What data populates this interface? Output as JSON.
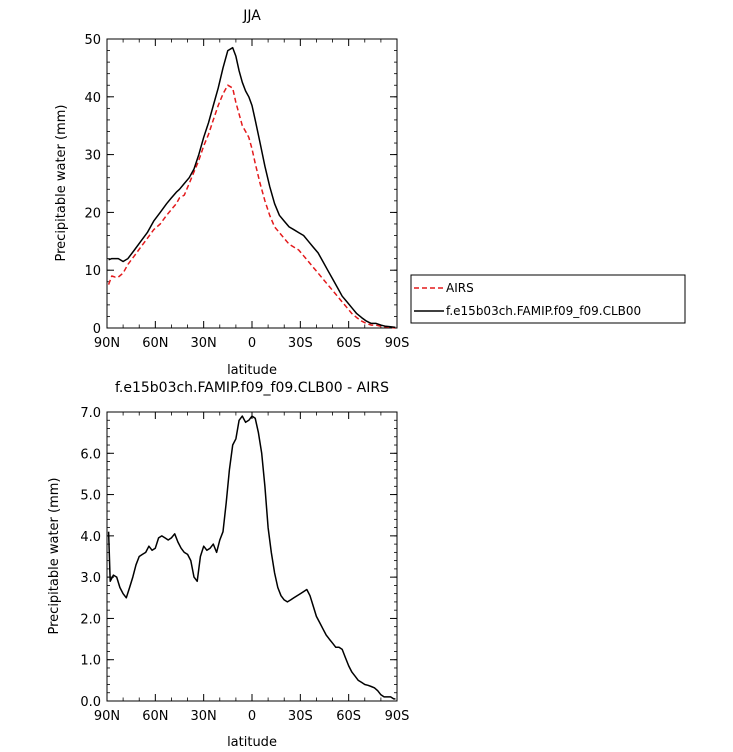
{
  "chart_data": [
    {
      "type": "line",
      "title": "JJA",
      "xlabel": "latitude",
      "ylabel": "Precipitable water (mm)",
      "xlim": [
        90,
        -90
      ],
      "ylim": [
        0,
        50
      ],
      "xticks": [
        90,
        60,
        30,
        0,
        -30,
        -60,
        -90
      ],
      "xtick_labels": [
        "90N",
        "60N",
        "30N",
        "0",
        "30S",
        "60S",
        "90S"
      ],
      "yticks": [
        0,
        10,
        20,
        30,
        40,
        50
      ],
      "ytick_labels": [
        "0",
        "10",
        "20",
        "30",
        "40",
        "50"
      ],
      "legend_position": "right",
      "series": [
        {
          "name": "AIRS",
          "color": "#e31a1c",
          "dash": "dashed",
          "x": [
            89,
            87,
            85,
            83,
            80,
            77,
            73,
            69,
            65,
            61,
            57,
            53,
            50,
            47,
            45,
            42,
            39,
            36,
            33,
            30,
            27,
            24,
            21,
            18,
            15,
            12,
            10,
            8,
            6,
            4,
            2,
            0,
            -2,
            -5,
            -8,
            -11,
            -14,
            -17,
            -20,
            -23,
            -26,
            -29,
            -32,
            -35,
            -38,
            -41,
            -44,
            -47,
            -50,
            -53,
            -56,
            -59,
            -62,
            -65,
            -68,
            -71,
            -74,
            -77,
            -80,
            -83,
            -86,
            -89
          ],
          "y": [
            7.5,
            9,
            8.8,
            8.8,
            9.5,
            11,
            12.5,
            14,
            15.5,
            17,
            18,
            19.5,
            20.5,
            21.5,
            22.5,
            23,
            25,
            27,
            29,
            31.5,
            33.5,
            36,
            38.5,
            40.5,
            42,
            41.5,
            39,
            37,
            35,
            34,
            33,
            31,
            28.5,
            25,
            22,
            19.5,
            17.5,
            16.5,
            15.5,
            14.5,
            14,
            13.5,
            12.5,
            11.5,
            10.5,
            9.5,
            8.5,
            7.5,
            6.5,
            5.5,
            4.5,
            3.5,
            2.5,
            1.8,
            1.2,
            0.8,
            0.5,
            0.5,
            0.3,
            0.2,
            0.1,
            0.0
          ]
        },
        {
          "name": "f.e15b03ch.FAMIP.f09_f09.CLB00",
          "color": "#000000",
          "dash": "solid",
          "x": [
            89,
            87,
            85,
            83,
            80,
            77,
            73,
            69,
            65,
            61,
            57,
            53,
            50,
            47,
            45,
            42,
            39,
            36,
            33,
            30,
            27,
            24,
            21,
            18,
            15,
            12,
            10,
            8,
            6,
            4,
            2,
            0,
            -2,
            -5,
            -8,
            -11,
            -14,
            -17,
            -20,
            -23,
            -26,
            -29,
            -32,
            -35,
            -38,
            -41,
            -44,
            -47,
            -50,
            -53,
            -56,
            -59,
            -62,
            -65,
            -68,
            -71,
            -74,
            -77,
            -80,
            -83,
            -86,
            -89
          ],
          "y": [
            11.8,
            12,
            12,
            12,
            11.5,
            12,
            13.5,
            15,
            16.5,
            18.5,
            20,
            21.5,
            22.5,
            23.5,
            24,
            25,
            26,
            27.5,
            30,
            33,
            35.5,
            38.5,
            41.5,
            45,
            48,
            48.5,
            47,
            44.5,
            42.5,
            41,
            40,
            38.5,
            36,
            32,
            28,
            24.5,
            21.5,
            19.5,
            18.5,
            17.5,
            17,
            16.5,
            16,
            15,
            14,
            13,
            11.5,
            10,
            8.5,
            7,
            5.5,
            4.5,
            3.5,
            2.5,
            1.8,
            1.2,
            0.8,
            0.8,
            0.5,
            0.3,
            0.2,
            0.1
          ]
        }
      ]
    },
    {
      "type": "line",
      "title": "f.e15b03ch.FAMIP.f09_f09.CLB00 - AIRS",
      "xlabel": "latitude",
      "ylabel": "Precipitable water (mm)",
      "xlim": [
        90,
        -90
      ],
      "ylim": [
        0,
        7
      ],
      "xticks": [
        90,
        60,
        30,
        0,
        -30,
        -60,
        -90
      ],
      "xtick_labels": [
        "90N",
        "60N",
        "30N",
        "0",
        "30S",
        "60S",
        "90S"
      ],
      "yticks": [
        0,
        1,
        2,
        3,
        4,
        5,
        6,
        7
      ],
      "ytick_labels": [
        "0.0",
        "1.0",
        "2.0",
        "3.0",
        "4.0",
        "5.0",
        "6.0",
        "7.0"
      ],
      "series": [
        {
          "color": "#000000",
          "x": [
            89,
            88,
            86,
            84,
            82,
            80,
            78,
            76,
            74,
            72,
            70,
            68,
            66,
            64,
            62,
            60,
            58,
            56,
            54,
            52,
            50,
            48,
            46,
            44,
            42,
            40,
            38,
            36,
            34,
            32,
            30,
            28,
            26,
            24,
            22,
            20,
            18,
            16,
            14,
            12,
            10,
            8,
            6,
            4,
            2,
            0,
            -2,
            -4,
            -6,
            -8,
            -10,
            -12,
            -14,
            -16,
            -18,
            -20,
            -22,
            -24,
            -26,
            -28,
            -30,
            -32,
            -34,
            -36,
            -38,
            -40,
            -42,
            -44,
            -46,
            -48,
            -50,
            -52,
            -54,
            -56,
            -58,
            -60,
            -62,
            -64,
            -66,
            -68,
            -70,
            -72,
            -74,
            -76,
            -78,
            -80,
            -82,
            -84,
            -86,
            -88,
            -89
          ],
          "y": [
            4.1,
            2.9,
            3.05,
            3.0,
            2.75,
            2.6,
            2.5,
            2.75,
            3.0,
            3.3,
            3.5,
            3.55,
            3.6,
            3.75,
            3.65,
            3.7,
            3.95,
            4.0,
            3.95,
            3.9,
            3.95,
            4.05,
            3.85,
            3.7,
            3.6,
            3.55,
            3.4,
            3.0,
            2.9,
            3.5,
            3.75,
            3.65,
            3.7,
            3.8,
            3.6,
            3.9,
            4.1,
            4.8,
            5.6,
            6.2,
            6.35,
            6.8,
            6.9,
            6.75,
            6.8,
            6.9,
            6.85,
            6.5,
            6.0,
            5.2,
            4.2,
            3.6,
            3.1,
            2.75,
            2.55,
            2.45,
            2.4,
            2.45,
            2.5,
            2.55,
            2.6,
            2.65,
            2.7,
            2.55,
            2.3,
            2.05,
            1.9,
            1.75,
            1.6,
            1.5,
            1.4,
            1.3,
            1.3,
            1.25,
            1.05,
            0.85,
            0.7,
            0.6,
            0.5,
            0.45,
            0.4,
            0.38,
            0.35,
            0.32,
            0.25,
            0.15,
            0.1,
            0.1,
            0.1,
            0.05,
            0.05
          ]
        }
      ]
    }
  ]
}
